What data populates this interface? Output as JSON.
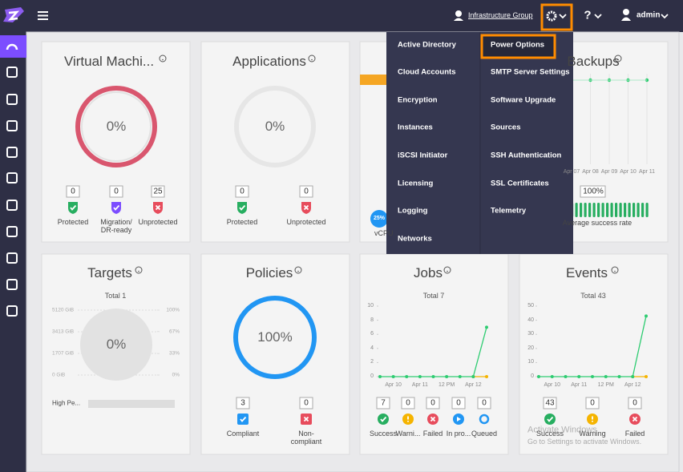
{
  "topbar": {
    "group": "Infrastructure Group",
    "help": "?",
    "user": "admin"
  },
  "menu": {
    "left": [
      "Active Directory",
      "Cloud Accounts",
      "Encryption",
      "Instances",
      "iSCSI Initiator",
      "Licensing",
      "Logging",
      "Networks"
    ],
    "right": [
      "Power Options",
      "SMTP Server Settings",
      "Software Upgrade",
      "Sources",
      "SSH Authentication",
      "SSL Certificates",
      "Telemetry"
    ]
  },
  "widgets": {
    "vms": {
      "title": "Virtual Machi...",
      "center": "0%",
      "counts": [
        {
          "value": 0,
          "label": "Protected"
        },
        {
          "value": 0,
          "label": "Migration/ DR-ready"
        },
        {
          "value": 25,
          "label": "Unprotected"
        }
      ]
    },
    "applications": {
      "title": "Applications",
      "center": "0%",
      "counts": [
        {
          "value": 0,
          "label": "Protected"
        },
        {
          "value": 0,
          "label": "Unprotected"
        }
      ]
    },
    "resources": {
      "badge": "25%",
      "label": "vCPU"
    },
    "backups": {
      "title": "Backups",
      "categories": [
        "Apr 07",
        "Apr 08",
        "Apr 09",
        "Apr 10",
        "Apr 11"
      ],
      "rate": "100%",
      "caption": "Average success rate"
    },
    "targets": {
      "title": "Targets",
      "total": "Total 1",
      "center": "0%",
      "item": "High Pe...",
      "chart": {
        "type": "axes",
        "ylim": [
          0,
          5120
        ],
        "yticks": [
          {
            "value": 5120,
            "label": "5120 GiB"
          },
          {
            "value": 3413,
            "label": "3413 GiB"
          },
          {
            "value": 1707,
            "label": "1707 GiB"
          },
          {
            "value": 0,
            "label": "0 GiB"
          }
        ],
        "y2lim": [
          0,
          100
        ],
        "y2ticks": [
          {
            "value": 100,
            "label": "100%"
          },
          {
            "value": 67,
            "label": "67%"
          },
          {
            "value": 33,
            "label": "33%"
          },
          {
            "value": 0,
            "label": "0%"
          }
        ]
      }
    },
    "policies": {
      "title": "Policies",
      "center": "100%",
      "counts": [
        {
          "value": 3,
          "label": "Compliant"
        },
        {
          "value": 0,
          "label": "Non-compliant"
        }
      ]
    },
    "jobs": {
      "title": "Jobs",
      "total": "Total 7",
      "chart": {
        "type": "line",
        "categories": [
          null,
          "Apr 10",
          null,
          "Apr 11",
          null,
          "12 PM",
          null,
          "Apr 12",
          null
        ],
        "series": [
          {
            "color": "#2ecc71",
            "values": [
              0,
              0,
              0,
              0,
              0,
              0,
              0,
              0,
              7
            ]
          },
          {
            "color": "#f5b400",
            "values": [
              null,
              null,
              null,
              null,
              null,
              null,
              null,
              0,
              0
            ]
          }
        ],
        "ylim": [
          0,
          10
        ],
        "yticks": [
          0,
          2,
          4,
          6,
          8,
          10
        ]
      },
      "counts": [
        {
          "value": 7,
          "label": "Success"
        },
        {
          "value": 0,
          "label": "Warni..."
        },
        {
          "value": 0,
          "label": "Failed"
        },
        {
          "value": 0,
          "label": "In pro..."
        },
        {
          "value": 0,
          "label": "Queued"
        }
      ]
    },
    "events": {
      "title": "Events",
      "total": "Total 43",
      "chart": {
        "type": "line",
        "categories": [
          null,
          "Apr 10",
          null,
          "Apr 11",
          null,
          "12 PM",
          null,
          "Apr 12",
          null
        ],
        "series": [
          {
            "color": "#2ecc71",
            "values": [
              0,
              0,
              0,
              0,
              0,
              0,
              0,
              0,
              43
            ]
          },
          {
            "color": "#f5b400",
            "values": [
              null,
              null,
              null,
              null,
              null,
              null,
              null,
              0,
              0
            ]
          }
        ],
        "ylim": [
          0,
          50
        ],
        "yticks": [
          0,
          10,
          20,
          30,
          40,
          50
        ]
      },
      "counts": [
        {
          "value": 43,
          "label": "Success"
        },
        {
          "value": 0,
          "label": "Warning"
        },
        {
          "value": 0,
          "label": "Failed"
        }
      ]
    }
  },
  "watermark": {
    "title": "Activate Windows",
    "text": "Go to Settings to activate Windows."
  }
}
